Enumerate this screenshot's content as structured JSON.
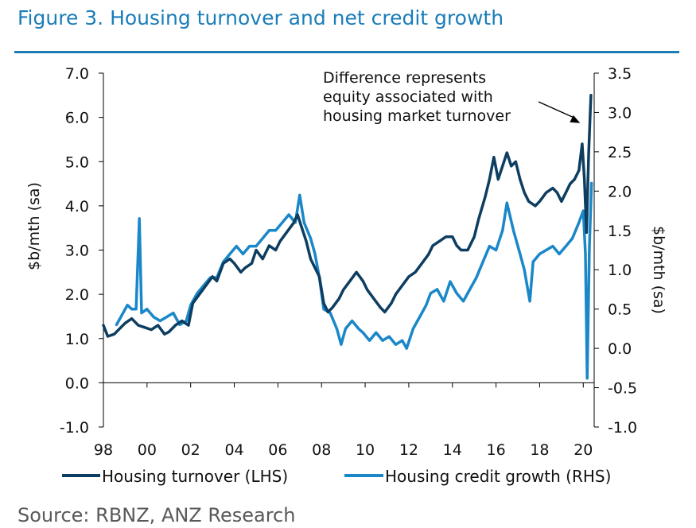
{
  "figure": {
    "title": "Figure 3. Housing turnover and net credit growth",
    "source": "Source: RBNZ, ANZ Research"
  },
  "colors": {
    "title": "#1a7db8",
    "turnover": "#0d3d60",
    "credit": "#1a87c8",
    "axis": "#000000"
  },
  "chart_data": {
    "type": "line",
    "title": "Figure 3. Housing turnover and net credit growth",
    "xlabel": "",
    "x_tick_labels": [
      "98",
      "00",
      "02",
      "04",
      "06",
      "08",
      "10",
      "12",
      "14",
      "16",
      "18",
      "20"
    ],
    "x_tick_values": [
      1998,
      2000,
      2002,
      2004,
      2006,
      2008,
      2010,
      2012,
      2014,
      2016,
      2018,
      2020
    ],
    "xlim": [
      1998,
      2020.5
    ],
    "y_left": {
      "label": "$b/mth (sa)",
      "lim": [
        -1.0,
        7.0
      ],
      "ticks": [
        "-1.0",
        "0.0",
        "1.0",
        "2.0",
        "3.0",
        "4.0",
        "5.0",
        "6.0",
        "7.0"
      ]
    },
    "y_right": {
      "label": "$b/mth (sa)",
      "lim": [
        -1.0,
        3.5
      ],
      "ticks": [
        "-1.0",
        "-0.5",
        "0.0",
        "0.5",
        "1.0",
        "1.5",
        "2.0",
        "2.5",
        "3.0",
        "3.5"
      ]
    },
    "legend_position": "bottom",
    "annotation": {
      "lines": [
        "Difference represents",
        "equity associated with",
        "housing market turnover"
      ],
      "arrow_target": {
        "x": 2020.0,
        "y_left": 5.8
      }
    },
    "series": [
      {
        "name": "Housing turnover (LHS)",
        "axis": "left",
        "points": [
          [
            1998.0,
            1.3
          ],
          [
            1998.2,
            1.05
          ],
          [
            1998.5,
            1.1
          ],
          [
            1998.8,
            1.25
          ],
          [
            1999.0,
            1.35
          ],
          [
            1999.3,
            1.45
          ],
          [
            1999.6,
            1.3
          ],
          [
            1999.9,
            1.25
          ],
          [
            2000.2,
            1.2
          ],
          [
            2000.5,
            1.3
          ],
          [
            2000.8,
            1.1
          ],
          [
            2001.0,
            1.15
          ],
          [
            2001.3,
            1.3
          ],
          [
            2001.6,
            1.4
          ],
          [
            2001.9,
            1.3
          ],
          [
            2002.1,
            1.8
          ],
          [
            2002.4,
            2.0
          ],
          [
            2002.7,
            2.2
          ],
          [
            2003.0,
            2.4
          ],
          [
            2003.2,
            2.3
          ],
          [
            2003.5,
            2.7
          ],
          [
            2003.8,
            2.8
          ],
          [
            2004.0,
            2.7
          ],
          [
            2004.3,
            2.5
          ],
          [
            2004.5,
            2.6
          ],
          [
            2004.8,
            2.7
          ],
          [
            2005.0,
            3.0
          ],
          [
            2005.3,
            2.8
          ],
          [
            2005.6,
            3.1
          ],
          [
            2005.9,
            3.0
          ],
          [
            2006.1,
            3.2
          ],
          [
            2006.4,
            3.4
          ],
          [
            2006.7,
            3.6
          ],
          [
            2006.9,
            3.8
          ],
          [
            2007.1,
            3.5
          ],
          [
            2007.3,
            3.2
          ],
          [
            2007.5,
            2.8
          ],
          [
            2007.7,
            2.6
          ],
          [
            2007.9,
            2.4
          ],
          [
            2008.1,
            1.8
          ],
          [
            2008.3,
            1.6
          ],
          [
            2008.5,
            1.7
          ],
          [
            2008.8,
            1.9
          ],
          [
            2009.0,
            2.1
          ],
          [
            2009.3,
            2.3
          ],
          [
            2009.6,
            2.5
          ],
          [
            2009.9,
            2.3
          ],
          [
            2010.1,
            2.1
          ],
          [
            2010.4,
            1.9
          ],
          [
            2010.7,
            1.7
          ],
          [
            2010.9,
            1.6
          ],
          [
            2011.2,
            1.8
          ],
          [
            2011.4,
            2.0
          ],
          [
            2011.7,
            2.2
          ],
          [
            2012.0,
            2.4
          ],
          [
            2012.3,
            2.5
          ],
          [
            2012.6,
            2.7
          ],
          [
            2012.9,
            2.9
          ],
          [
            2013.1,
            3.1
          ],
          [
            2013.4,
            3.2
          ],
          [
            2013.7,
            3.3
          ],
          [
            2014.0,
            3.3
          ],
          [
            2014.2,
            3.1
          ],
          [
            2014.4,
            3.0
          ],
          [
            2014.7,
            3.0
          ],
          [
            2015.0,
            3.3
          ],
          [
            2015.2,
            3.7
          ],
          [
            2015.5,
            4.2
          ],
          [
            2015.7,
            4.6
          ],
          [
            2015.9,
            5.1
          ],
          [
            2016.1,
            4.6
          ],
          [
            2016.3,
            4.9
          ],
          [
            2016.5,
            5.2
          ],
          [
            2016.7,
            4.9
          ],
          [
            2016.9,
            5.0
          ],
          [
            2017.1,
            4.6
          ],
          [
            2017.3,
            4.3
          ],
          [
            2017.5,
            4.1
          ],
          [
            2017.8,
            4.0
          ],
          [
            2018.0,
            4.1
          ],
          [
            2018.3,
            4.3
          ],
          [
            2018.6,
            4.4
          ],
          [
            2018.8,
            4.3
          ],
          [
            2019.0,
            4.1
          ],
          [
            2019.2,
            4.3
          ],
          [
            2019.4,
            4.5
          ],
          [
            2019.6,
            4.6
          ],
          [
            2019.8,
            4.8
          ],
          [
            2019.95,
            5.4
          ],
          [
            2020.05,
            4.6
          ],
          [
            2020.15,
            3.4
          ],
          [
            2020.25,
            5.2
          ],
          [
            2020.35,
            6.5
          ]
        ]
      },
      {
        "name": "Housing credit growth (RHS)",
        "axis": "right",
        "points": [
          [
            1998.6,
            0.3
          ],
          [
            1998.9,
            0.45
          ],
          [
            1999.1,
            0.55
          ],
          [
            1999.3,
            0.5
          ],
          [
            1999.5,
            0.5
          ],
          [
            1999.65,
            1.65
          ],
          [
            1999.75,
            0.45
          ],
          [
            2000.0,
            0.5
          ],
          [
            2000.3,
            0.4
          ],
          [
            2000.6,
            0.35
          ],
          [
            2000.9,
            0.4
          ],
          [
            2001.2,
            0.45
          ],
          [
            2001.5,
            0.3
          ],
          [
            2001.8,
            0.35
          ],
          [
            2002.0,
            0.55
          ],
          [
            2002.3,
            0.7
          ],
          [
            2002.6,
            0.8
          ],
          [
            2002.9,
            0.9
          ],
          [
            2003.2,
            0.9
          ],
          [
            2003.5,
            1.1
          ],
          [
            2003.8,
            1.2
          ],
          [
            2004.1,
            1.3
          ],
          [
            2004.4,
            1.2
          ],
          [
            2004.7,
            1.3
          ],
          [
            2005.0,
            1.3
          ],
          [
            2005.3,
            1.4
          ],
          [
            2005.6,
            1.5
          ],
          [
            2005.9,
            1.5
          ],
          [
            2006.2,
            1.6
          ],
          [
            2006.5,
            1.7
          ],
          [
            2006.8,
            1.6
          ],
          [
            2007.0,
            1.95
          ],
          [
            2007.2,
            1.6
          ],
          [
            2007.5,
            1.4
          ],
          [
            2007.7,
            1.2
          ],
          [
            2007.9,
            0.9
          ],
          [
            2008.1,
            0.5
          ],
          [
            2008.4,
            0.45
          ],
          [
            2008.7,
            0.25
          ],
          [
            2008.9,
            0.05
          ],
          [
            2009.1,
            0.25
          ],
          [
            2009.4,
            0.35
          ],
          [
            2009.7,
            0.25
          ],
          [
            2009.9,
            0.2
          ],
          [
            2010.2,
            0.1
          ],
          [
            2010.5,
            0.2
          ],
          [
            2010.8,
            0.1
          ],
          [
            2011.1,
            0.15
          ],
          [
            2011.4,
            0.05
          ],
          [
            2011.7,
            0.1
          ],
          [
            2011.9,
            0.0
          ],
          [
            2012.2,
            0.25
          ],
          [
            2012.5,
            0.4
          ],
          [
            2012.8,
            0.55
          ],
          [
            2013.0,
            0.7
          ],
          [
            2013.3,
            0.75
          ],
          [
            2013.6,
            0.6
          ],
          [
            2013.9,
            0.85
          ],
          [
            2014.2,
            0.7
          ],
          [
            2014.5,
            0.6
          ],
          [
            2014.8,
            0.75
          ],
          [
            2015.1,
            0.9
          ],
          [
            2015.4,
            1.1
          ],
          [
            2015.7,
            1.3
          ],
          [
            2016.0,
            1.25
          ],
          [
            2016.3,
            1.5
          ],
          [
            2016.5,
            1.85
          ],
          [
            2016.8,
            1.5
          ],
          [
            2017.1,
            1.2
          ],
          [
            2017.3,
            1.0
          ],
          [
            2017.55,
            0.6
          ],
          [
            2017.7,
            1.1
          ],
          [
            2018.0,
            1.2
          ],
          [
            2018.3,
            1.25
          ],
          [
            2018.6,
            1.3
          ],
          [
            2018.9,
            1.2
          ],
          [
            2019.2,
            1.3
          ],
          [
            2019.5,
            1.4
          ],
          [
            2019.8,
            1.6
          ],
          [
            2020.0,
            1.75
          ],
          [
            2020.1,
            1.2
          ],
          [
            2020.18,
            -0.38
          ],
          [
            2020.28,
            1.3
          ],
          [
            2020.38,
            2.1
          ]
        ]
      }
    ]
  }
}
